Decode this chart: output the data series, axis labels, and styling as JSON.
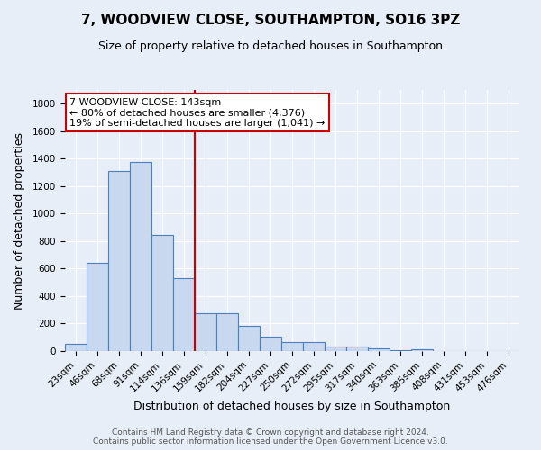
{
  "title": "7, WOODVIEW CLOSE, SOUTHAMPTON, SO16 3PZ",
  "subtitle": "Size of property relative to detached houses in Southampton",
  "xlabel": "Distribution of detached houses by size in Southampton",
  "ylabel": "Number of detached properties",
  "categories": [
    "23sqm",
    "46sqm",
    "68sqm",
    "91sqm",
    "114sqm",
    "136sqm",
    "159sqm",
    "182sqm",
    "204sqm",
    "227sqm",
    "250sqm",
    "272sqm",
    "295sqm",
    "317sqm",
    "340sqm",
    "363sqm",
    "385sqm",
    "408sqm",
    "431sqm",
    "453sqm",
    "476sqm"
  ],
  "values": [
    55,
    645,
    1310,
    1375,
    845,
    530,
    275,
    275,
    185,
    103,
    65,
    65,
    35,
    35,
    18,
    8,
    14,
    0,
    0,
    0,
    0
  ],
  "bar_color": "#c8d9ef",
  "bar_edge_color": "#4a7fc0",
  "vline_x_bar_idx": 5.5,
  "vline_color": "#cc0000",
  "annotation_line1": "7 WOODVIEW CLOSE: 143sqm",
  "annotation_line2": "← 80% of detached houses are smaller (4,376)",
  "annotation_line3": "19% of semi-detached houses are larger (1,041) →",
  "annotation_box_color": "#ffffff",
  "annotation_box_edge_color": "#cc0000",
  "ylim": [
    0,
    1900
  ],
  "yticks": [
    0,
    200,
    400,
    600,
    800,
    1000,
    1200,
    1400,
    1600,
    1800
  ],
  "footer_text": "Contains HM Land Registry data © Crown copyright and database right 2024.\nContains public sector information licensed under the Open Government Licence v3.0.",
  "background_color": "#e8eef8",
  "grid_color": "#ffffff",
  "title_fontsize": 11,
  "subtitle_fontsize": 9,
  "xlabel_fontsize": 9,
  "ylabel_fontsize": 9,
  "tick_fontsize": 7.5,
  "annotation_fontsize": 8,
  "footer_fontsize": 6.5
}
